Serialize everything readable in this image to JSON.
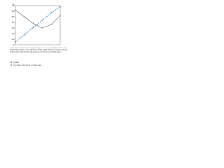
{
  "chart_data": {
    "type": "line",
    "y_label": "φ",
    "caption": "Load deformation limits respectively a = 1.6 if processed about the sheet deformation; the hatching at the right of the point lies outside of the safe area for the appearance of dimension limits taken",
    "x": [
      0,
      0.2,
      0.4,
      0.6,
      0.8,
      1
    ],
    "xlim": [
      0,
      1
    ],
    "ylim": [
      0,
      70
    ],
    "yticks": [
      0,
      10,
      20,
      30,
      40,
      50,
      60,
      70
    ],
    "series": [
      {
        "name": "sheet",
        "color": "#2f7fc1",
        "values": [
          5,
          18,
          31,
          44,
          57,
          68
        ]
      },
      {
        "name": "contour forming in fixtures",
        "color": "#8a8a8a",
        "values": [
          62,
          50,
          38,
          30,
          36,
          52
        ]
      }
    ]
  }
}
